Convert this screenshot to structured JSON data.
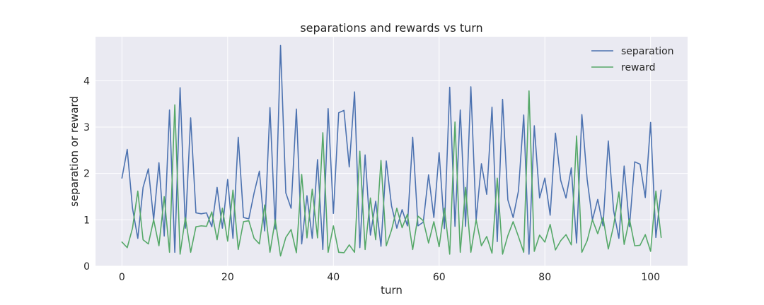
{
  "chart_data": {
    "type": "line",
    "title": "separations and rewards vs turn",
    "xlabel": "turn",
    "ylabel": "separation or reward",
    "xlim": [
      -5,
      107
    ],
    "ylim": [
      0,
      4.95
    ],
    "xticks": [
      0,
      20,
      40,
      60,
      80,
      100
    ],
    "yticks": [
      0,
      1,
      2,
      3,
      4
    ],
    "grid": true,
    "legend_position": "top-right",
    "series": [
      {
        "name": "separation",
        "color": "#4c72b0",
        "values": [
          1.9,
          2.52,
          1.25,
          0.6,
          1.7,
          2.1,
          1.0,
          2.23,
          0.65,
          3.37,
          0.3,
          3.85,
          0.82,
          3.2,
          1.15,
          1.13,
          1.15,
          0.85,
          1.7,
          0.82,
          1.87,
          0.6,
          2.78,
          1.05,
          1.02,
          1.58,
          2.05,
          0.76,
          3.42,
          0.8,
          4.76,
          1.58,
          1.25,
          3.39,
          0.48,
          1.52,
          0.6,
          2.3,
          0.36,
          3.4,
          1.14,
          3.31,
          3.36,
          2.14,
          3.76,
          0.4,
          2.4,
          0.67,
          1.4,
          0.43,
          2.27,
          1.3,
          0.82,
          1.22,
          0.87,
          2.78,
          0.87,
          0.95,
          1.97,
          1.05,
          2.45,
          0.81,
          3.86,
          0.86,
          3.37,
          0.86,
          3.87,
          1.0,
          2.21,
          1.55,
          3.43,
          0.53,
          3.6,
          1.43,
          1.05,
          1.62,
          3.26,
          0.26,
          3.03,
          1.47,
          1.9,
          1.1,
          2.87,
          1.85,
          1.47,
          2.12,
          0.5,
          3.27,
          1.87,
          1.0,
          1.44,
          0.87,
          2.7,
          1.2,
          0.6,
          2.16,
          0.85,
          2.25,
          2.2,
          1.48,
          3.1,
          0.62,
          1.64
        ]
      },
      {
        "name": "reward",
        "color": "#55a868",
        "values": [
          0.52,
          0.4,
          0.82,
          1.62,
          0.57,
          0.48,
          1.0,
          0.44,
          1.5,
          0.3,
          3.48,
          0.26,
          1.05,
          0.3,
          0.85,
          0.87,
          0.86,
          1.17,
          0.57,
          1.25,
          0.54,
          1.64,
          0.36,
          0.96,
          0.98,
          0.6,
          0.48,
          1.32,
          0.3,
          1.0,
          0.22,
          0.62,
          0.79,
          0.29,
          1.98,
          0.61,
          1.66,
          0.61,
          2.88,
          0.3,
          0.87,
          0.3,
          0.29,
          0.46,
          0.3,
          2.48,
          0.36,
          1.47,
          0.57,
          2.28,
          0.44,
          0.78,
          1.25,
          0.83,
          1.12,
          0.36,
          1.08,
          0.98,
          0.5,
          0.96,
          0.42,
          1.25,
          0.26,
          3.11,
          0.3,
          1.7,
          0.3,
          1.0,
          0.44,
          0.64,
          0.28,
          1.9,
          0.26,
          0.66,
          0.96,
          0.64,
          0.3,
          3.78,
          0.32,
          0.67,
          0.52,
          0.9,
          0.35,
          0.55,
          0.68,
          0.46,
          2.81,
          0.3,
          0.55,
          1.0,
          0.7,
          1.05,
          0.37,
          0.87,
          1.6,
          0.47,
          1.02,
          0.44,
          0.45,
          0.68,
          0.32,
          1.62,
          0.62
        ]
      }
    ]
  }
}
